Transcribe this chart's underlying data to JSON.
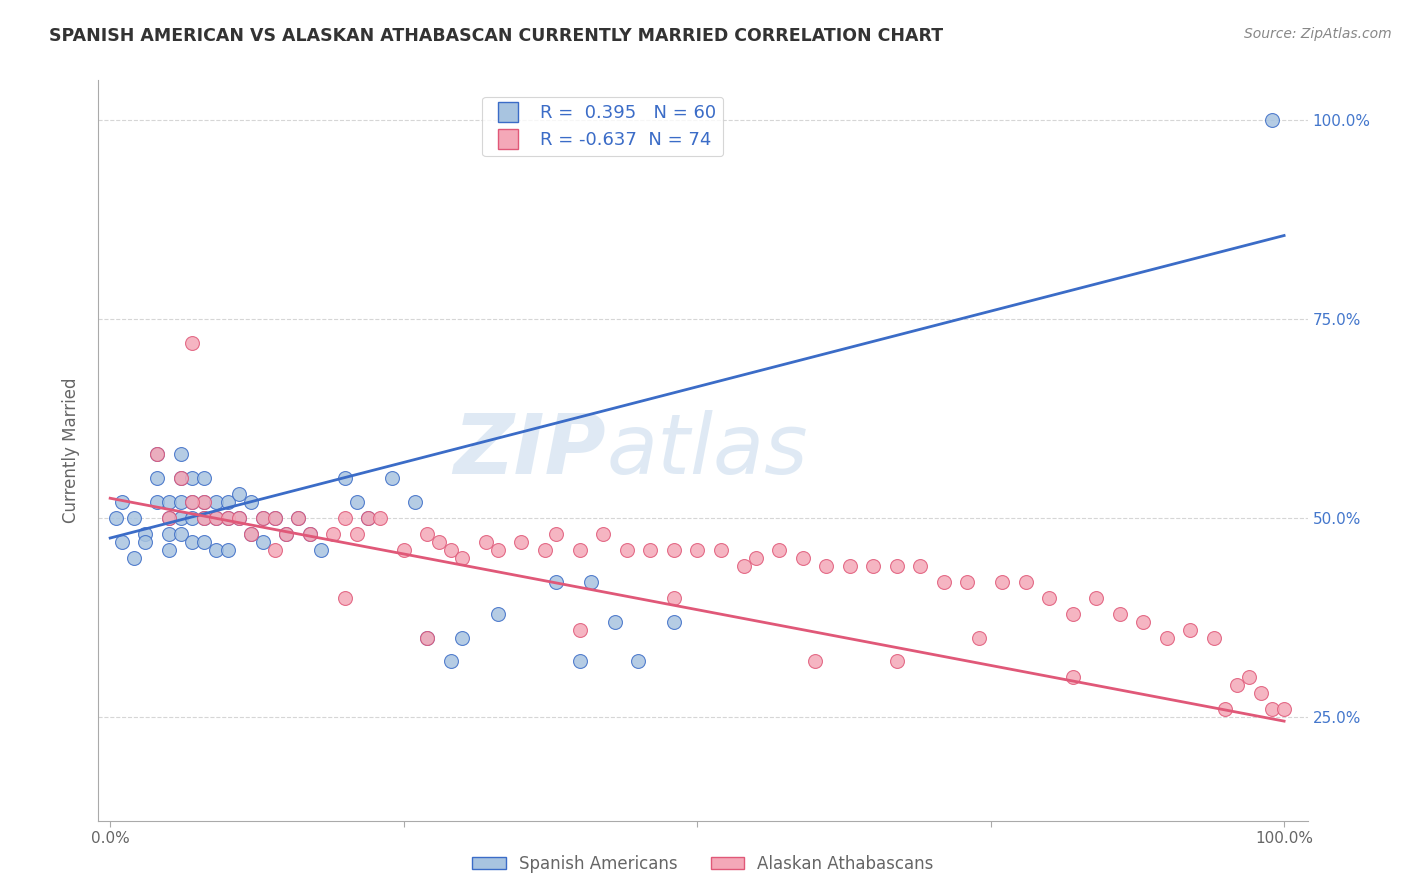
{
  "title": "SPANISH AMERICAN VS ALASKAN ATHABASCAN CURRENTLY MARRIED CORRELATION CHART",
  "source": "Source: ZipAtlas.com",
  "ylabel": "Currently Married",
  "blue_R": 0.395,
  "blue_N": 60,
  "pink_R": -0.637,
  "pink_N": 74,
  "blue_color": "#A8C4E0",
  "pink_color": "#F4A8B8",
  "blue_line_color": "#3B6CC7",
  "pink_line_color": "#E05878",
  "legend_label_blue": "Spanish Americans",
  "legend_label_pink": "Alaskan Athabascans",
  "watermark_zip": "ZIP",
  "watermark_atlas": "atlas",
  "background_color": "#FFFFFF",
  "grid_color": "#CCCCCC",
  "title_color": "#333333",
  "axis_label_color": "#666666",
  "right_tick_color": "#4477CC",
  "xlim": [
    -0.01,
    1.02
  ],
  "ylim": [
    0.12,
    1.05
  ],
  "yticks": [
    0.25,
    0.5,
    0.75,
    1.0
  ],
  "xticks": [
    0.0,
    0.25,
    0.5,
    0.75,
    1.0
  ],
  "blue_line_x": [
    0.0,
    1.0
  ],
  "blue_line_y": [
    0.475,
    0.855
  ],
  "pink_line_x": [
    0.0,
    1.0
  ],
  "pink_line_y": [
    0.525,
    0.245
  ],
  "blue_scatter_x": [
    0.005,
    0.01,
    0.01,
    0.02,
    0.02,
    0.03,
    0.03,
    0.04,
    0.04,
    0.04,
    0.05,
    0.05,
    0.05,
    0.05,
    0.06,
    0.06,
    0.06,
    0.06,
    0.06,
    0.07,
    0.07,
    0.07,
    0.07,
    0.08,
    0.08,
    0.08,
    0.08,
    0.09,
    0.09,
    0.09,
    0.1,
    0.1,
    0.1,
    0.11,
    0.11,
    0.12,
    0.12,
    0.13,
    0.13,
    0.14,
    0.15,
    0.16,
    0.17,
    0.18,
    0.2,
    0.21,
    0.22,
    0.24,
    0.26,
    0.27,
    0.29,
    0.3,
    0.33,
    0.38,
    0.4,
    0.41,
    0.43,
    0.45,
    0.48,
    0.99
  ],
  "blue_scatter_y": [
    0.5,
    0.47,
    0.52,
    0.5,
    0.45,
    0.48,
    0.47,
    0.58,
    0.55,
    0.52,
    0.5,
    0.52,
    0.48,
    0.46,
    0.58,
    0.55,
    0.52,
    0.5,
    0.48,
    0.55,
    0.52,
    0.5,
    0.47,
    0.55,
    0.52,
    0.5,
    0.47,
    0.52,
    0.5,
    0.46,
    0.52,
    0.5,
    0.46,
    0.53,
    0.5,
    0.52,
    0.48,
    0.5,
    0.47,
    0.5,
    0.48,
    0.5,
    0.48,
    0.46,
    0.55,
    0.52,
    0.5,
    0.55,
    0.52,
    0.35,
    0.32,
    0.35,
    0.38,
    0.42,
    0.32,
    0.42,
    0.37,
    0.32,
    0.37,
    1.0
  ],
  "pink_scatter_x": [
    0.04,
    0.05,
    0.06,
    0.07,
    0.08,
    0.08,
    0.09,
    0.1,
    0.11,
    0.12,
    0.13,
    0.14,
    0.14,
    0.15,
    0.16,
    0.17,
    0.19,
    0.2,
    0.21,
    0.22,
    0.23,
    0.25,
    0.27,
    0.28,
    0.29,
    0.3,
    0.32,
    0.33,
    0.35,
    0.37,
    0.38,
    0.4,
    0.42,
    0.44,
    0.46,
    0.48,
    0.5,
    0.52,
    0.54,
    0.55,
    0.57,
    0.59,
    0.61,
    0.63,
    0.65,
    0.67,
    0.69,
    0.71,
    0.73,
    0.74,
    0.76,
    0.78,
    0.8,
    0.82,
    0.84,
    0.86,
    0.88,
    0.9,
    0.92,
    0.94,
    0.96,
    0.97,
    0.98,
    0.99,
    1.0,
    0.07,
    0.2,
    0.27,
    0.4,
    0.48,
    0.6,
    0.67,
    0.82,
    0.95
  ],
  "pink_scatter_y": [
    0.58,
    0.5,
    0.55,
    0.72,
    0.52,
    0.5,
    0.5,
    0.5,
    0.5,
    0.48,
    0.5,
    0.5,
    0.46,
    0.48,
    0.5,
    0.48,
    0.48,
    0.5,
    0.48,
    0.5,
    0.5,
    0.46,
    0.48,
    0.47,
    0.46,
    0.45,
    0.47,
    0.46,
    0.47,
    0.46,
    0.48,
    0.46,
    0.48,
    0.46,
    0.46,
    0.46,
    0.46,
    0.46,
    0.44,
    0.45,
    0.46,
    0.45,
    0.44,
    0.44,
    0.44,
    0.44,
    0.44,
    0.42,
    0.42,
    0.35,
    0.42,
    0.42,
    0.4,
    0.38,
    0.4,
    0.38,
    0.37,
    0.35,
    0.36,
    0.35,
    0.29,
    0.3,
    0.28,
    0.26,
    0.26,
    0.52,
    0.4,
    0.35,
    0.36,
    0.4,
    0.32,
    0.32,
    0.3,
    0.26
  ]
}
